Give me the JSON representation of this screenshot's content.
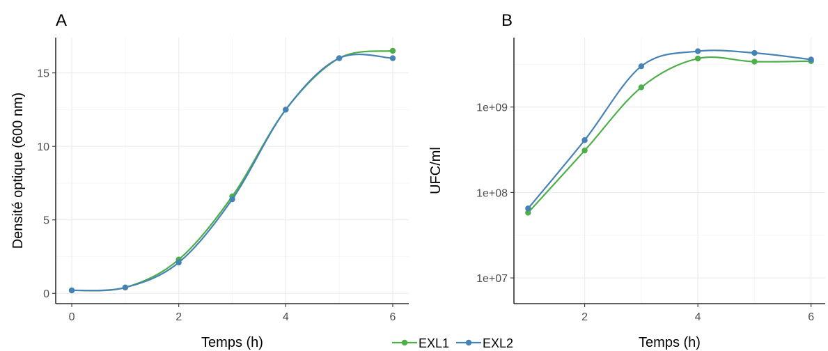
{
  "colors": {
    "EXL1": "#4daf4a",
    "EXL2": "#4682b4"
  },
  "legend": {
    "position": "bottom",
    "entries": [
      "EXL1",
      "EXL2"
    ]
  },
  "chart_data": [
    {
      "type": "line",
      "panel_label": "A",
      "xlabel": "Temps (h)",
      "ylabel": "Densité optique (600 nm)",
      "xlim": [
        -0.3,
        6.3
      ],
      "ylim": [
        -0.7,
        17.4
      ],
      "x_ticks": [
        0,
        2,
        4,
        6
      ],
      "y_ticks": [
        0,
        5,
        10,
        15
      ],
      "y_scale": "linear",
      "grid": true,
      "series": [
        {
          "name": "EXL1",
          "x": [
            0,
            1,
            2,
            3,
            4,
            5,
            6
          ],
          "y": [
            0.2,
            0.4,
            2.3,
            6.6,
            12.5,
            16.0,
            16.5
          ]
        },
        {
          "name": "EXL2",
          "x": [
            0,
            1,
            2,
            3,
            4,
            5,
            6
          ],
          "y": [
            0.2,
            0.4,
            2.1,
            6.4,
            12.5,
            16.0,
            16.0
          ]
        }
      ]
    },
    {
      "type": "line",
      "panel_label": "B",
      "xlabel": "Temps (h)",
      "ylabel": "UFC/ml",
      "xlim": [
        0.75,
        6.25
      ],
      "ylim": [
        5000000,
        6500000000
      ],
      "x_ticks": [
        2,
        4,
        6
      ],
      "y_ticks": [
        10000000,
        100000000,
        1000000000
      ],
      "y_tick_labels": [
        "1e+07",
        "1e+08",
        "1e+09"
      ],
      "y_scale": "log",
      "grid": true,
      "series": [
        {
          "name": "EXL1",
          "x": [
            1,
            2,
            3,
            4,
            5,
            6
          ],
          "y": [
            58000000,
            310000000,
            1700000000,
            3700000000,
            3400000000,
            3450000000
          ]
        },
        {
          "name": "EXL2",
          "x": [
            1,
            2,
            3,
            4,
            5,
            6
          ],
          "y": [
            65000000,
            410000000,
            3000000000,
            4500000000,
            4300000000,
            3600000000
          ]
        }
      ]
    }
  ]
}
